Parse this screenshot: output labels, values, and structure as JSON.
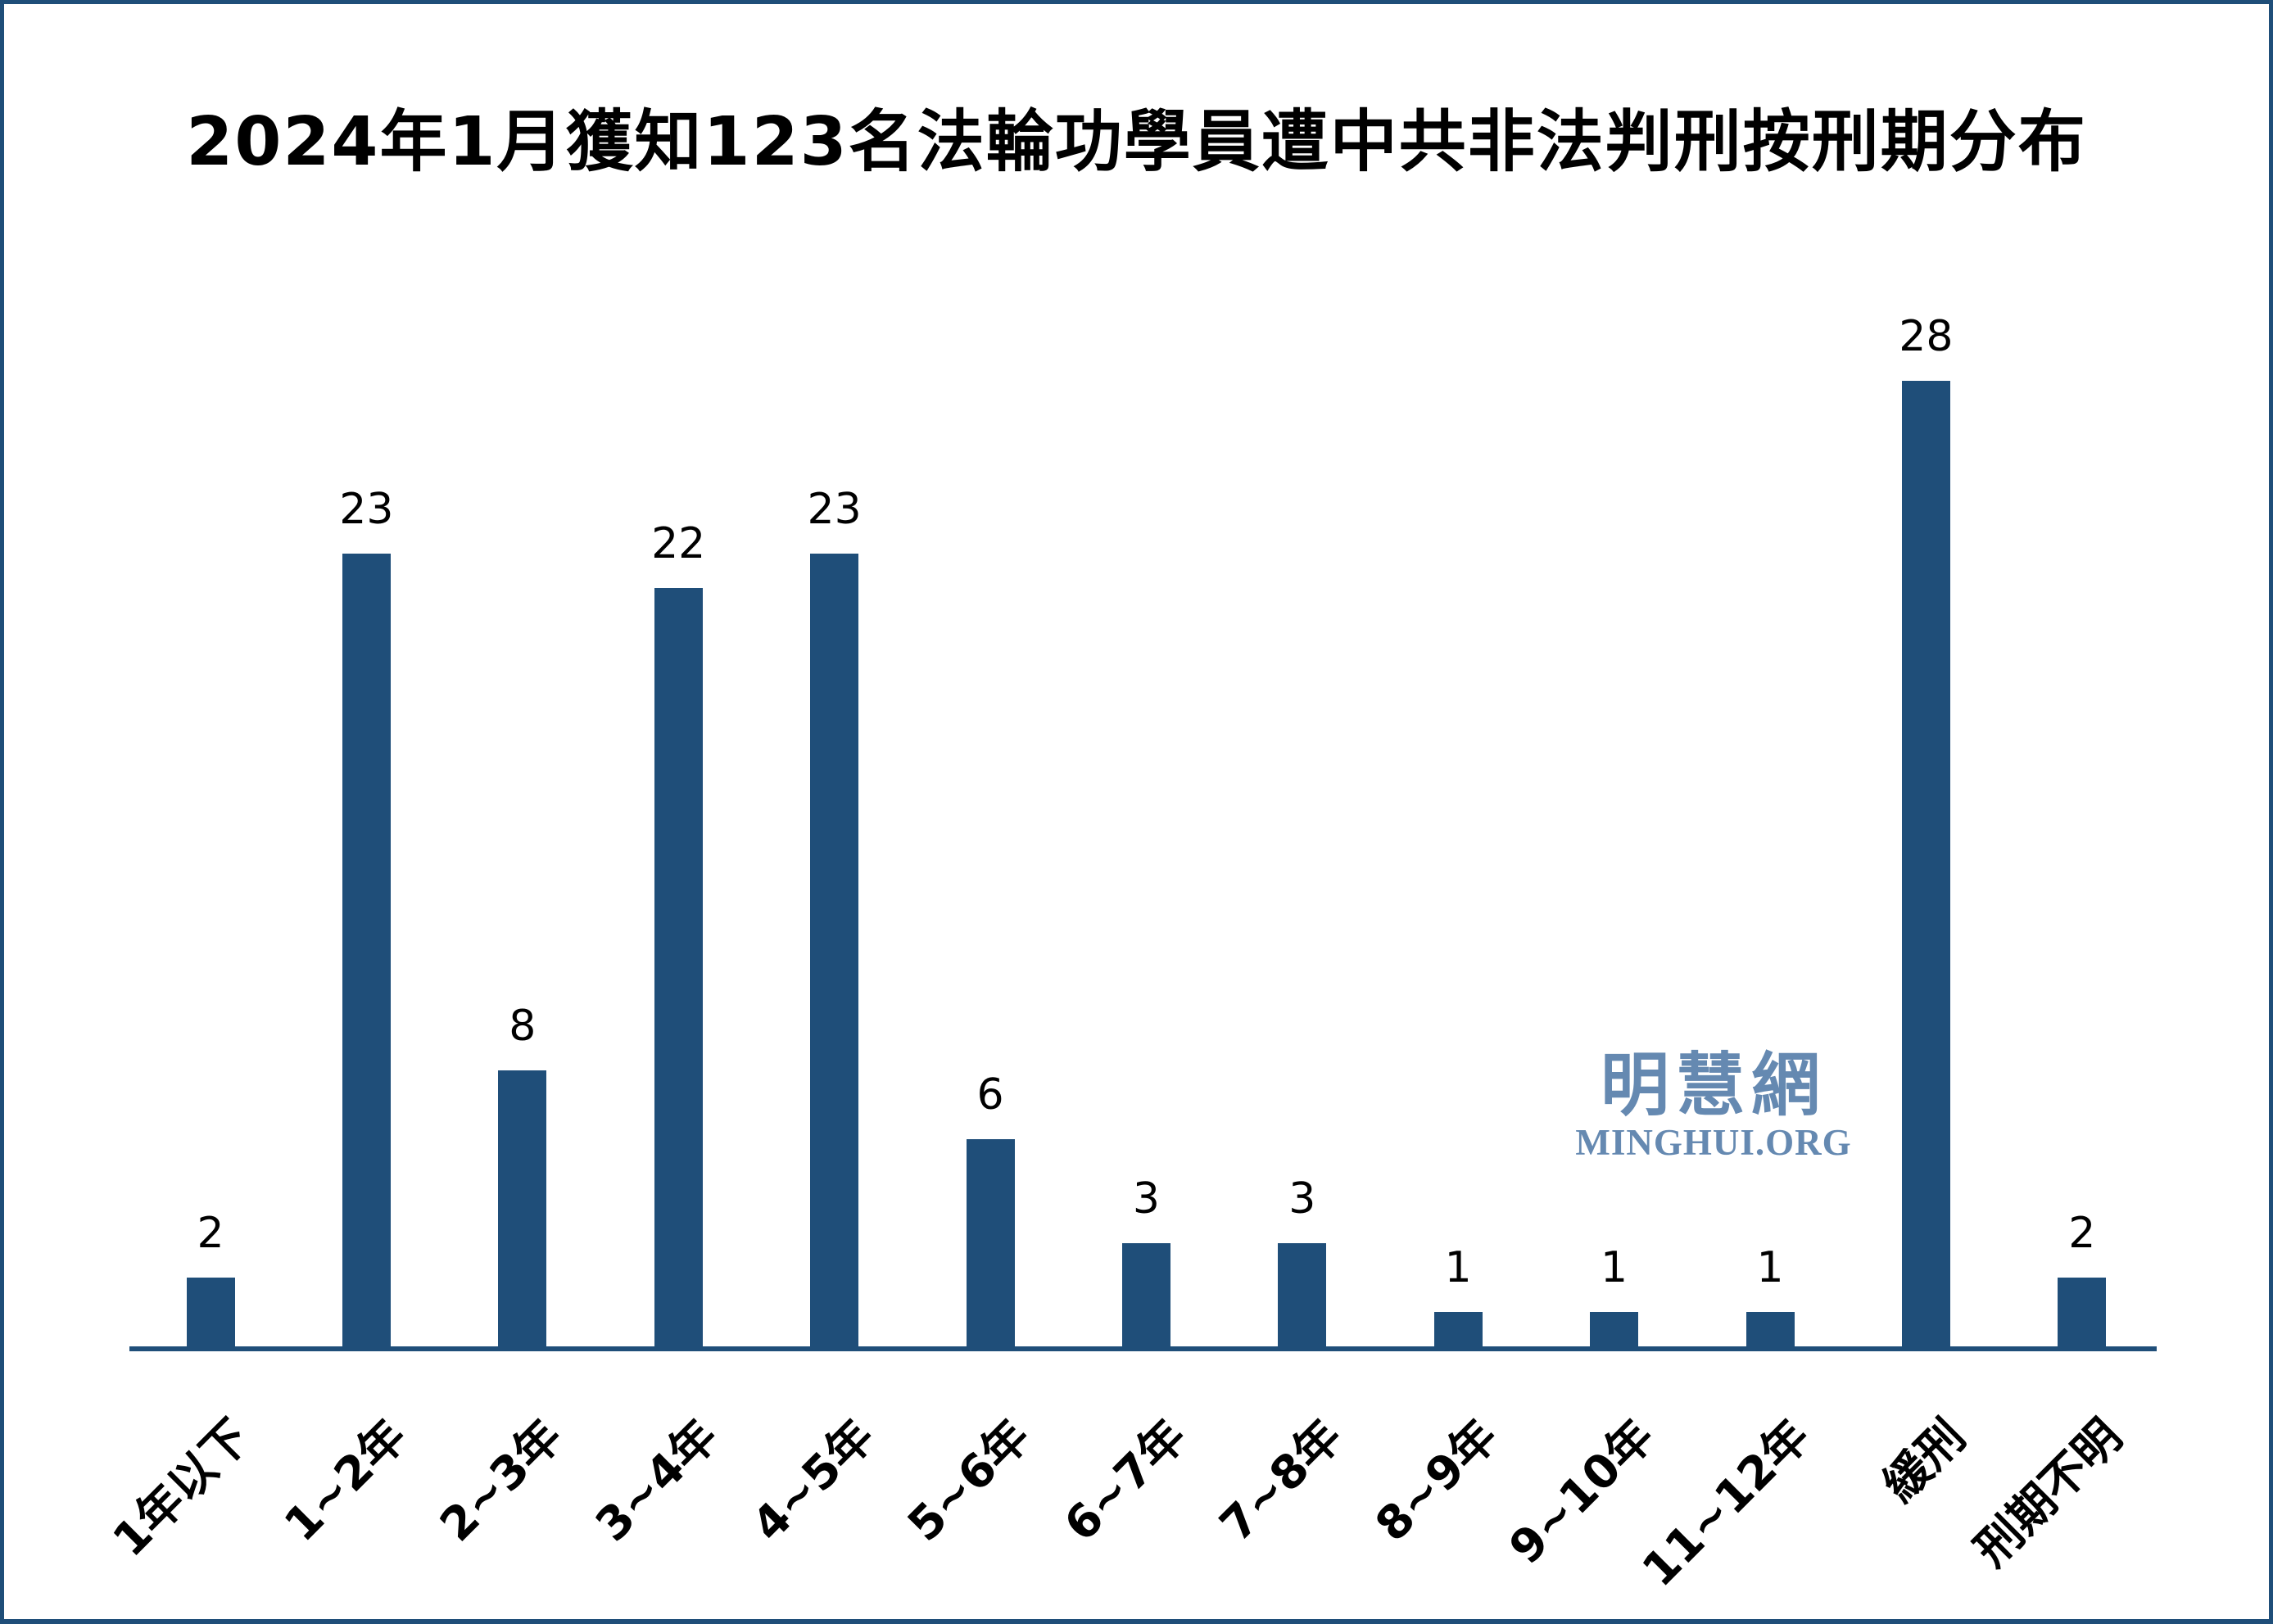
{
  "title": "2024年1月獲知123名法輪功學員遭中共非法判刑按刑期分布",
  "watermark": {
    "chinese": "明慧網",
    "english": "MINGHUI.ORG"
  },
  "colors": {
    "bar": "#1F4E79",
    "axis": "#1F4E79",
    "border": "#1F4E79",
    "watermark": "#6589B1",
    "label": "#000000",
    "background": "#FFFFFF"
  },
  "chart_data": {
    "type": "bar",
    "title": "2024年1月獲知123名法輪功學員遭中共非法判刑按刑期分布",
    "categories": [
      "1年以下",
      "1~2年",
      "2~3年",
      "3~4年",
      "4~5年",
      "5~6年",
      "6~7年",
      "7~8年",
      "8~9年",
      "9~10年",
      "11~12年",
      "緩刑",
      "刑期不明"
    ],
    "values": [
      2,
      23,
      8,
      22,
      23,
      6,
      3,
      3,
      1,
      1,
      1,
      28,
      2
    ],
    "total_mentioned_in_title": 123,
    "xlabel": "",
    "ylabel": "",
    "ylim": [
      0,
      30
    ],
    "grid": false,
    "legend": false,
    "y_axis_visible": false,
    "value_labels_shown": true,
    "x_tick_rotation_deg": 45,
    "bar_color": "#1F4E79"
  }
}
